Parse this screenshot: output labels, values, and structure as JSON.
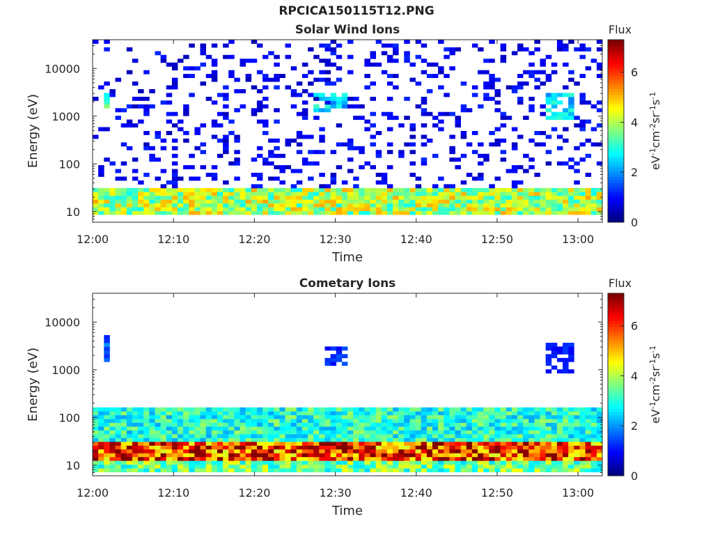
{
  "figure_title": "RPCICA150115T12.PNG",
  "chart_data": [
    {
      "type": "heatmap",
      "title": "Solar Wind Ions",
      "xlabel": "Time",
      "ylabel": "Energy (eV)",
      "x_ticks": [
        "12:00",
        "12:10",
        "12:20",
        "12:30",
        "12:40",
        "12:50",
        "13:00"
      ],
      "x_range": [
        "12:00",
        "13:03"
      ],
      "y_scale": "log",
      "y_ticks": [
        10,
        100,
        1000,
        10000
      ],
      "y_tick_labels": [
        "10",
        "100",
        "1000",
        "10000"
      ],
      "y_range": [
        6,
        40000
      ],
      "colorbar": {
        "title": "Flux",
        "label": "eV-1cm-2sr-1s-1",
        "ticks": [
          0,
          2,
          4,
          6
        ],
        "range": [
          0,
          7.3
        ],
        "colormap": "jet"
      },
      "features": [
        {
          "desc": "persistent low-energy band",
          "energy_eV": [
            8,
            30
          ],
          "time": [
            "12:00",
            "13:03"
          ],
          "level": 4.0
        },
        {
          "desc": "burst",
          "time": [
            "12:01",
            "12:02"
          ],
          "energy_eV": [
            1500,
            3000
          ],
          "level": 3.0
        },
        {
          "desc": "burst",
          "time": [
            "12:27",
            "12:31"
          ],
          "energy_eV": [
            1200,
            3000
          ],
          "level": 2.5
        },
        {
          "desc": "burst",
          "time": [
            "12:56",
            "12:59"
          ],
          "energy_eV": [
            800,
            3000
          ],
          "level": 2.5
        },
        {
          "desc": "scattered background counts",
          "energy_eV": [
            30,
            40000
          ],
          "level": 1.0
        }
      ]
    },
    {
      "type": "heatmap",
      "title": "Cometary Ions",
      "xlabel": "Time",
      "ylabel": "Energy (eV)",
      "x_ticks": [
        "12:00",
        "12:10",
        "12:20",
        "12:30",
        "12:40",
        "12:50",
        "13:00"
      ],
      "x_range": [
        "12:00",
        "13:03"
      ],
      "y_scale": "log",
      "y_ticks": [
        10,
        100,
        1000,
        10000
      ],
      "y_tick_labels": [
        "10",
        "100",
        "1000",
        "10000"
      ],
      "y_range": [
        6,
        40000
      ],
      "colorbar": {
        "title": "Flux",
        "label": "eV-1cm-2sr-1s-1",
        "ticks": [
          0,
          2,
          4,
          6
        ],
        "range": [
          0,
          7.3
        ],
        "colormap": "jet"
      },
      "features": [
        {
          "desc": "intense low-energy band",
          "energy_eV": [
            12,
            30
          ],
          "time": [
            "12:00",
            "13:03"
          ],
          "level": 6.0
        },
        {
          "desc": "moderate band",
          "energy_eV": [
            7,
            12
          ],
          "time": [
            "12:00",
            "13:03"
          ],
          "level": 3.5
        },
        {
          "desc": "moderate band",
          "energy_eV": [
            30,
            150
          ],
          "time": [
            "12:00",
            "13:03"
          ],
          "level": 3.0
        },
        {
          "desc": "burst",
          "time": [
            "12:01",
            "12:02"
          ],
          "energy_eV": [
            1500,
            5000
          ],
          "level": 1.5
        },
        {
          "desc": "burst",
          "time": [
            "12:28",
            "12:31"
          ],
          "energy_eV": [
            1200,
            3000
          ],
          "level": 1.2
        },
        {
          "desc": "burst",
          "time": [
            "12:56",
            "12:59"
          ],
          "energy_eV": [
            800,
            4000
          ],
          "level": 1.0
        }
      ]
    }
  ]
}
